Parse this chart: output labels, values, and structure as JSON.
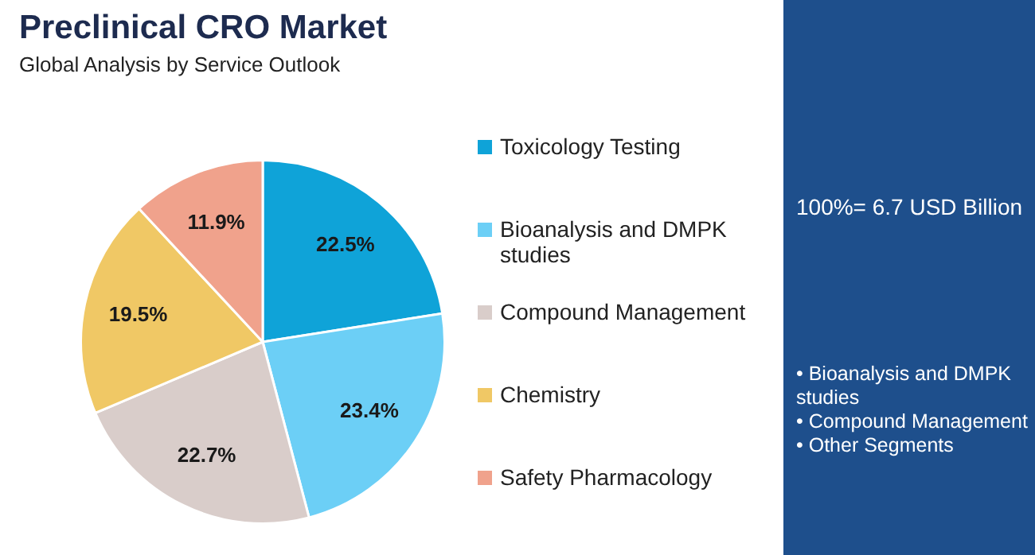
{
  "chart_data": {
    "type": "pie",
    "title": "Preclinical CRO Market",
    "subtitle": "Global Analysis by Service Outlook",
    "categories": [
      "Toxicology Testing",
      "Bioanalysis and DMPK studies",
      "Compound Management",
      "Chemistry",
      "Safety Pharmacology"
    ],
    "values": [
      22.5,
      23.4,
      22.7,
      19.5,
      11.9
    ],
    "colors": [
      "#0fa3d8",
      "#6ccff6",
      "#d9cdca",
      "#f0c865",
      "#f0a28c"
    ],
    "value_labels": [
      "22.5%",
      "23.4%",
      "22.7%",
      "19.5%",
      "11.9%"
    ],
    "legend": "right",
    "annotations": [
      "100%= 6.7 USD Billion",
      "• Bioanalysis and DMPK studies",
      "• Compound Management",
      "• Other Segments"
    ]
  }
}
